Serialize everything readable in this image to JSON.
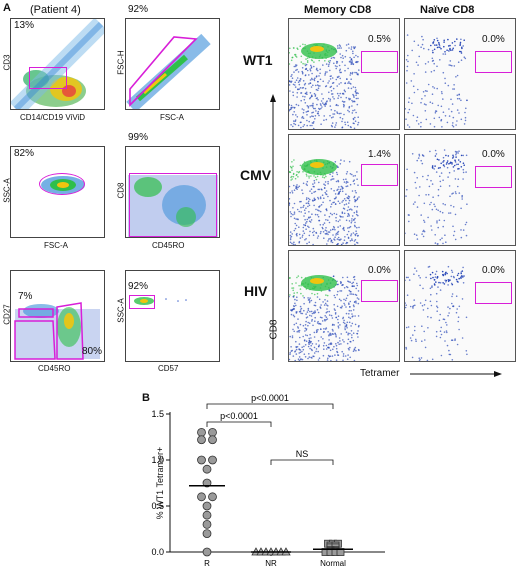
{
  "panel_a": {
    "letter": "A",
    "patient": "(Patient 4)",
    "plots": [
      {
        "id": "p1",
        "pct": "13%",
        "ylabel": "CD3",
        "xlabel": "CD14/CD19 ViViD"
      },
      {
        "id": "p2",
        "pct": "92%",
        "ylabel": "FSC-H",
        "xlabel": "FSC-A"
      },
      {
        "id": "p3",
        "pct": "82%",
        "ylabel": "SSC-A",
        "xlabel": "FSC-A"
      },
      {
        "id": "p4",
        "pct": "99%",
        "ylabel": "CD8",
        "xlabel": "CD45RO"
      },
      {
        "id": "p5",
        "pct": "7%",
        "pct2": "80%",
        "ylabel": "CD27",
        "xlabel": "CD45RO"
      },
      {
        "id": "p6",
        "pct": "92%",
        "ylabel": "SSC-A",
        "xlabel": "CD57"
      }
    ],
    "grid": {
      "col_headers": [
        "Memory CD8",
        "Naïve CD8"
      ],
      "rows": [
        {
          "label": "WT1",
          "memory": "0.5%",
          "naive": "0.0%"
        },
        {
          "label": "CMV",
          "memory": "1.4%",
          "naive": "0.0%"
        },
        {
          "label": "HIV",
          "memory": "0.0%",
          "naive": "0.0%"
        }
      ],
      "ylabel": "CD8",
      "xlabel": "Tetramer"
    }
  },
  "panel_b": {
    "letter": "B",
    "chart_data": {
      "type": "scatter",
      "ylabel": "% WT1 Tetramer+",
      "categories": [
        "R",
        "NR",
        "Normal"
      ],
      "ylim": [
        0,
        1.5
      ],
      "yticks": [
        "0.0",
        "0.5",
        "1.0",
        "1.5"
      ],
      "series": [
        {
          "category": "R",
          "marker": "circle",
          "color": "#9a9a9a",
          "values": [
            1.3,
            1.3,
            1.22,
            1.22,
            1.0,
            1.0,
            0.9,
            0.75,
            0.6,
            0.6,
            0.5,
            0.4,
            0.3,
            0.2,
            0.0
          ],
          "median": 0.72
        },
        {
          "category": "NR",
          "marker": "triangle",
          "color": "#b0b0b0",
          "values": [
            0,
            0,
            0,
            0,
            0,
            0,
            0
          ],
          "median": 0.0
        },
        {
          "category": "Normal",
          "marker": "square",
          "color": "#9a9a9a",
          "values": [
            0.09,
            0.09,
            0.09,
            0.07,
            0.07,
            0.05,
            0.05,
            0.02,
            0.02,
            0.01,
            0.01,
            0.0,
            0.0,
            0.0,
            0.0
          ],
          "median": 0.03
        }
      ],
      "comparisons": [
        {
          "from": "R",
          "to": "Normal",
          "label": "p<0.0001"
        },
        {
          "from": "R",
          "to": "NR",
          "label": "p<0.0001"
        },
        {
          "from": "NR",
          "to": "Normal",
          "label": "NS"
        }
      ]
    }
  },
  "colors": {
    "gate": "#d81ed8",
    "axis": "#111111"
  }
}
